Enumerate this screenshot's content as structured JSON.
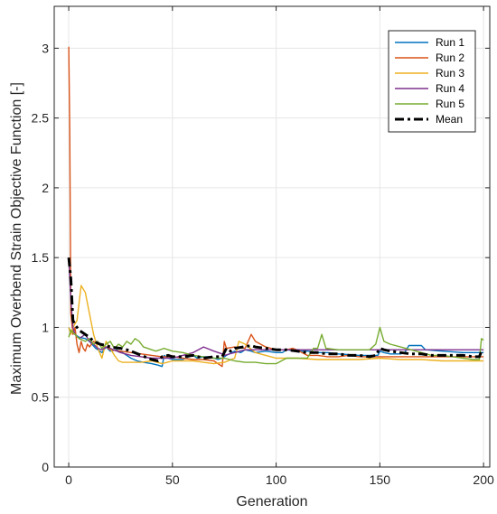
{
  "chart_data": {
    "type": "line",
    "title": "",
    "xlabel": "Generation",
    "ylabel": "Maximum Overbend Strain Objective Function [-]",
    "xlim": [
      -7,
      203
    ],
    "ylim": [
      0,
      3.3
    ],
    "xticks": [
      0,
      50,
      100,
      150,
      200
    ],
    "yticks": [
      0,
      0.5,
      1,
      1.5,
      2,
      2.5,
      3
    ],
    "ytick_labels": [
      "0",
      "0.5",
      "1",
      "1.5",
      "2",
      "2.5",
      "3"
    ],
    "grid": true,
    "legend_position": "top-right",
    "series": [
      {
        "name": "Run 1",
        "color": "#0072BD",
        "dashed": false,
        "points": [
          [
            0,
            1.0
          ],
          [
            1,
            0.97
          ],
          [
            3,
            0.95
          ],
          [
            5,
            0.93
          ],
          [
            8,
            0.92
          ],
          [
            10,
            0.9
          ],
          [
            13,
            0.85
          ],
          [
            16,
            0.82
          ],
          [
            18,
            0.86
          ],
          [
            20,
            0.83
          ],
          [
            23,
            0.84
          ],
          [
            26,
            0.82
          ],
          [
            28,
            0.8
          ],
          [
            30,
            0.78
          ],
          [
            33,
            0.76
          ],
          [
            36,
            0.75
          ],
          [
            40,
            0.74
          ],
          [
            43,
            0.73
          ],
          [
            45,
            0.72
          ],
          [
            46,
            0.8
          ],
          [
            48,
            0.78
          ],
          [
            50,
            0.77
          ],
          [
            55,
            0.77
          ],
          [
            58,
            0.79
          ],
          [
            60,
            0.8
          ],
          [
            62,
            0.78
          ],
          [
            65,
            0.79
          ],
          [
            68,
            0.79
          ],
          [
            70,
            0.78
          ],
          [
            72,
            0.77
          ],
          [
            74,
            0.78
          ],
          [
            76,
            0.8
          ],
          [
            80,
            0.83
          ],
          [
            83,
            0.82
          ],
          [
            85,
            0.84
          ],
          [
            88,
            0.83
          ],
          [
            90,
            0.82
          ],
          [
            95,
            0.83
          ],
          [
            100,
            0.82
          ],
          [
            103,
            0.82
          ],
          [
            105,
            0.84
          ],
          [
            110,
            0.83
          ],
          [
            115,
            0.83
          ],
          [
            120,
            0.82
          ],
          [
            125,
            0.82
          ],
          [
            130,
            0.81
          ],
          [
            140,
            0.8
          ],
          [
            149,
            0.8
          ],
          [
            150,
            0.83
          ],
          [
            152,
            0.82
          ],
          [
            155,
            0.81
          ],
          [
            160,
            0.81
          ],
          [
            162,
            0.82
          ],
          [
            164,
            0.87
          ],
          [
            170,
            0.87
          ],
          [
            172,
            0.84
          ],
          [
            180,
            0.83
          ],
          [
            190,
            0.82
          ],
          [
            200,
            0.82
          ]
        ]
      },
      {
        "name": "Run 2",
        "color": "#D95319",
        "dashed": false,
        "points": [
          [
            0,
            3.01
          ],
          [
            0.5,
            2.4
          ],
          [
            1,
            1.1
          ],
          [
            2,
            0.95
          ],
          [
            3,
            1.0
          ],
          [
            4,
            0.88
          ],
          [
            5,
            0.82
          ],
          [
            6,
            0.9
          ],
          [
            7,
            0.85
          ],
          [
            8,
            0.83
          ],
          [
            9,
            0.88
          ],
          [
            10,
            0.86
          ],
          [
            12,
            0.9
          ],
          [
            14,
            0.88
          ],
          [
            16,
            0.87
          ],
          [
            18,
            0.86
          ],
          [
            20,
            0.84
          ],
          [
            25,
            0.83
          ],
          [
            30,
            0.82
          ],
          [
            35,
            0.81
          ],
          [
            40,
            0.8
          ],
          [
            45,
            0.79
          ],
          [
            50,
            0.79
          ],
          [
            55,
            0.78
          ],
          [
            60,
            0.77
          ],
          [
            65,
            0.77
          ],
          [
            70,
            0.76
          ],
          [
            74,
            0.72
          ],
          [
            75,
            0.9
          ],
          [
            76,
            0.85
          ],
          [
            80,
            0.86
          ],
          [
            85,
            0.85
          ],
          [
            88,
            0.95
          ],
          [
            90,
            0.9
          ],
          [
            95,
            0.86
          ],
          [
            100,
            0.84
          ],
          [
            105,
            0.84
          ],
          [
            108,
            0.85
          ],
          [
            110,
            0.84
          ],
          [
            115,
            0.8
          ],
          [
            120,
            0.8
          ],
          [
            125,
            0.79
          ],
          [
            130,
            0.79
          ],
          [
            135,
            0.8
          ],
          [
            140,
            0.79
          ],
          [
            145,
            0.79
          ],
          [
            150,
            0.79
          ],
          [
            155,
            0.79
          ],
          [
            160,
            0.79
          ],
          [
            170,
            0.79
          ],
          [
            180,
            0.79
          ],
          [
            190,
            0.79
          ],
          [
            200,
            0.79
          ]
        ]
      },
      {
        "name": "Run 3",
        "color": "#EDB120",
        "dashed": false,
        "points": [
          [
            0,
            1.0
          ],
          [
            1,
            0.95
          ],
          [
            2,
            1.0
          ],
          [
            4,
            1.05
          ],
          [
            6,
            1.3
          ],
          [
            8,
            1.25
          ],
          [
            10,
            1.1
          ],
          [
            12,
            0.95
          ],
          [
            14,
            0.85
          ],
          [
            16,
            0.78
          ],
          [
            18,
            0.9
          ],
          [
            20,
            0.85
          ],
          [
            22,
            0.8
          ],
          [
            24,
            0.76
          ],
          [
            26,
            0.75
          ],
          [
            30,
            0.75
          ],
          [
            35,
            0.75
          ],
          [
            40,
            0.76
          ],
          [
            45,
            0.74
          ],
          [
            50,
            0.76
          ],
          [
            55,
            0.76
          ],
          [
            60,
            0.76
          ],
          [
            65,
            0.75
          ],
          [
            70,
            0.74
          ],
          [
            75,
            0.75
          ],
          [
            80,
            0.78
          ],
          [
            82,
            0.9
          ],
          [
            85,
            0.88
          ],
          [
            90,
            0.82
          ],
          [
            95,
            0.8
          ],
          [
            100,
            0.78
          ],
          [
            110,
            0.78
          ],
          [
            120,
            0.77
          ],
          [
            130,
            0.77
          ],
          [
            140,
            0.77
          ],
          [
            150,
            0.78
          ],
          [
            160,
            0.77
          ],
          [
            170,
            0.77
          ],
          [
            180,
            0.76
          ],
          [
            190,
            0.76
          ],
          [
            200,
            0.76
          ]
        ]
      },
      {
        "name": "Run 4",
        "color": "#7E2F8E",
        "dashed": false,
        "points": [
          [
            0,
            1.5
          ],
          [
            1,
            1.2
          ],
          [
            2,
            1.0
          ],
          [
            3,
            0.95
          ],
          [
            5,
            0.92
          ],
          [
            8,
            0.95
          ],
          [
            10,
            0.9
          ],
          [
            12,
            0.88
          ],
          [
            14,
            0.85
          ],
          [
            16,
            0.84
          ],
          [
            18,
            0.86
          ],
          [
            20,
            0.85
          ],
          [
            25,
            0.82
          ],
          [
            30,
            0.8
          ],
          [
            35,
            0.79
          ],
          [
            40,
            0.78
          ],
          [
            45,
            0.78
          ],
          [
            50,
            0.78
          ],
          [
            55,
            0.8
          ],
          [
            60,
            0.82
          ],
          [
            65,
            0.86
          ],
          [
            70,
            0.83
          ],
          [
            74,
            0.81
          ],
          [
            75,
            0.8
          ],
          [
            80,
            0.82
          ],
          [
            85,
            0.84
          ],
          [
            90,
            0.84
          ],
          [
            95,
            0.84
          ],
          [
            100,
            0.84
          ],
          [
            110,
            0.84
          ],
          [
            120,
            0.84
          ],
          [
            130,
            0.84
          ],
          [
            140,
            0.84
          ],
          [
            150,
            0.84
          ],
          [
            160,
            0.84
          ],
          [
            170,
            0.84
          ],
          [
            180,
            0.84
          ],
          [
            190,
            0.84
          ],
          [
            200,
            0.84
          ]
        ]
      },
      {
        "name": "Run 5",
        "color": "#77AC30",
        "dashed": false,
        "points": [
          [
            0,
            0.93
          ],
          [
            1,
            0.98
          ],
          [
            3,
            0.95
          ],
          [
            5,
            0.92
          ],
          [
            8,
            0.9
          ],
          [
            10,
            0.92
          ],
          [
            12,
            0.88
          ],
          [
            14,
            0.9
          ],
          [
            16,
            0.85
          ],
          [
            18,
            0.88
          ],
          [
            20,
            0.9
          ],
          [
            22,
            0.85
          ],
          [
            24,
            0.88
          ],
          [
            26,
            0.86
          ],
          [
            28,
            0.9
          ],
          [
            30,
            0.88
          ],
          [
            32,
            0.92
          ],
          [
            34,
            0.9
          ],
          [
            36,
            0.86
          ],
          [
            38,
            0.85
          ],
          [
            40,
            0.84
          ],
          [
            42,
            0.83
          ],
          [
            44,
            0.84
          ],
          [
            46,
            0.85
          ],
          [
            48,
            0.84
          ],
          [
            50,
            0.83
          ],
          [
            55,
            0.82
          ],
          [
            60,
            0.8
          ],
          [
            65,
            0.79
          ],
          [
            70,
            0.78
          ],
          [
            75,
            0.78
          ],
          [
            80,
            0.76
          ],
          [
            85,
            0.75
          ],
          [
            90,
            0.75
          ],
          [
            95,
            0.74
          ],
          [
            100,
            0.74
          ],
          [
            105,
            0.78
          ],
          [
            110,
            0.78
          ],
          [
            115,
            0.78
          ],
          [
            118,
            0.85
          ],
          [
            120,
            0.85
          ],
          [
            122,
            0.95
          ],
          [
            124,
            0.85
          ],
          [
            130,
            0.84
          ],
          [
            140,
            0.84
          ],
          [
            145,
            0.84
          ],
          [
            148,
            0.88
          ],
          [
            150,
            1.0
          ],
          [
            152,
            0.9
          ],
          [
            155,
            0.88
          ],
          [
            160,
            0.86
          ],
          [
            165,
            0.84
          ],
          [
            170,
            0.82
          ],
          [
            175,
            0.8
          ],
          [
            180,
            0.8
          ],
          [
            185,
            0.79
          ],
          [
            190,
            0.78
          ],
          [
            195,
            0.77
          ],
          [
            198,
            0.77
          ],
          [
            199,
            0.92
          ],
          [
            200,
            0.91
          ]
        ]
      },
      {
        "name": "Mean",
        "color": "#000000",
        "dashed": true,
        "points": [
          [
            0,
            1.5
          ],
          [
            1,
            1.35
          ],
          [
            2,
            1.05
          ],
          [
            3,
            1.02
          ],
          [
            5,
            0.98
          ],
          [
            8,
            0.95
          ],
          [
            10,
            0.93
          ],
          [
            12,
            0.9
          ],
          [
            15,
            0.88
          ],
          [
            18,
            0.87
          ],
          [
            20,
            0.86
          ],
          [
            25,
            0.85
          ],
          [
            28,
            0.84
          ],
          [
            30,
            0.83
          ],
          [
            35,
            0.8
          ],
          [
            40,
            0.77
          ],
          [
            43,
            0.76
          ],
          [
            45,
            0.79
          ],
          [
            48,
            0.8
          ],
          [
            50,
            0.79
          ],
          [
            55,
            0.79
          ],
          [
            60,
            0.8
          ],
          [
            65,
            0.78
          ],
          [
            70,
            0.79
          ],
          [
            74,
            0.79
          ],
          [
            76,
            0.85
          ],
          [
            78,
            0.83
          ],
          [
            80,
            0.85
          ],
          [
            84,
            0.86
          ],
          [
            88,
            0.87
          ],
          [
            90,
            0.86
          ],
          [
            95,
            0.85
          ],
          [
            100,
            0.84
          ],
          [
            105,
            0.84
          ],
          [
            110,
            0.83
          ],
          [
            115,
            0.82
          ],
          [
            120,
            0.82
          ],
          [
            125,
            0.81
          ],
          [
            130,
            0.81
          ],
          [
            135,
            0.8
          ],
          [
            140,
            0.8
          ],
          [
            145,
            0.79
          ],
          [
            148,
            0.8
          ],
          [
            150,
            0.85
          ],
          [
            152,
            0.84
          ],
          [
            155,
            0.83
          ],
          [
            160,
            0.82
          ],
          [
            165,
            0.81
          ],
          [
            170,
            0.81
          ],
          [
            175,
            0.8
          ],
          [
            180,
            0.8
          ],
          [
            185,
            0.8
          ],
          [
            190,
            0.8
          ],
          [
            195,
            0.79
          ],
          [
            198,
            0.79
          ],
          [
            199,
            0.83
          ],
          [
            200,
            0.83
          ]
        ]
      }
    ]
  }
}
